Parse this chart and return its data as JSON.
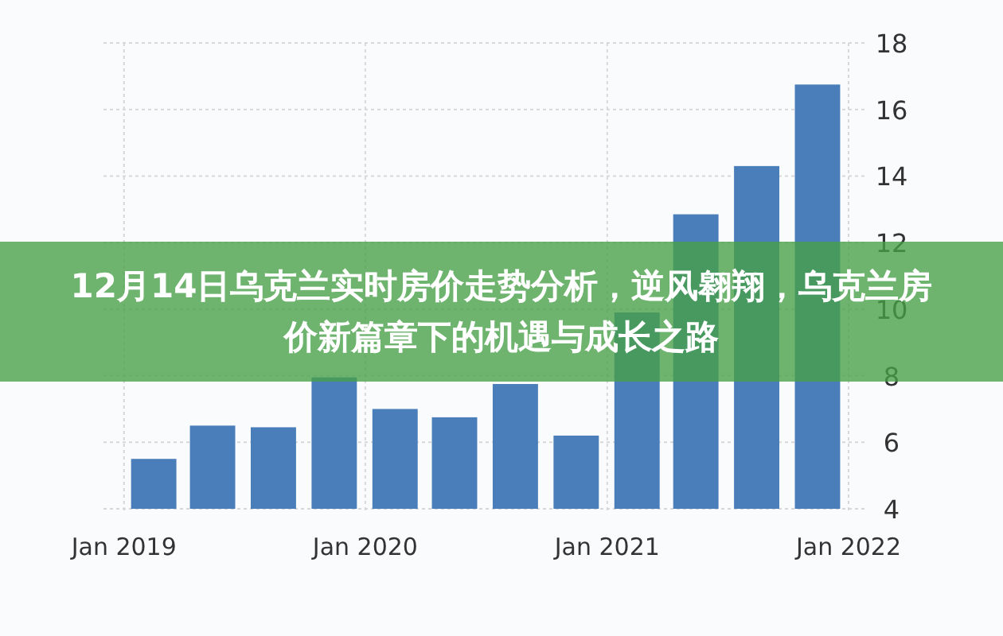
{
  "chart_data": {
    "type": "bar",
    "title": "12月14日乌克兰实时房价走势分析，逆风翱翔，乌克兰房价新篇章下的机遇与成长之路",
    "x": [
      "2019-02-15",
      "2019-05-15",
      "2019-08-15",
      "2019-11-15",
      "2020-02-15",
      "2020-05-15",
      "2020-08-15",
      "2020-11-15",
      "2021-02-15",
      "2021-05-15",
      "2021-08-15",
      "2021-11-15"
    ],
    "values": [
      5.5,
      6.5,
      6.45,
      7.95,
      7.0,
      6.75,
      7.75,
      6.2,
      9.9,
      12.85,
      14.3,
      16.75
    ],
    "color": "#4a7ebb",
    "xlim": [
      "2018-12-01",
      "2022-01-01"
    ],
    "xticks": [
      {
        "value": "2019-01-01",
        "label": "Jan 2019"
      },
      {
        "value": "2020-01-01",
        "label": "Jan 2020"
      },
      {
        "value": "2021-01-01",
        "label": "Jan 2021"
      },
      {
        "value": "2022-01-01",
        "label": "Jan 2022"
      }
    ],
    "ylim": [
      4,
      18
    ],
    "yticks": [
      4,
      6,
      8,
      10,
      12,
      14,
      16,
      18
    ],
    "grid": true
  }
}
